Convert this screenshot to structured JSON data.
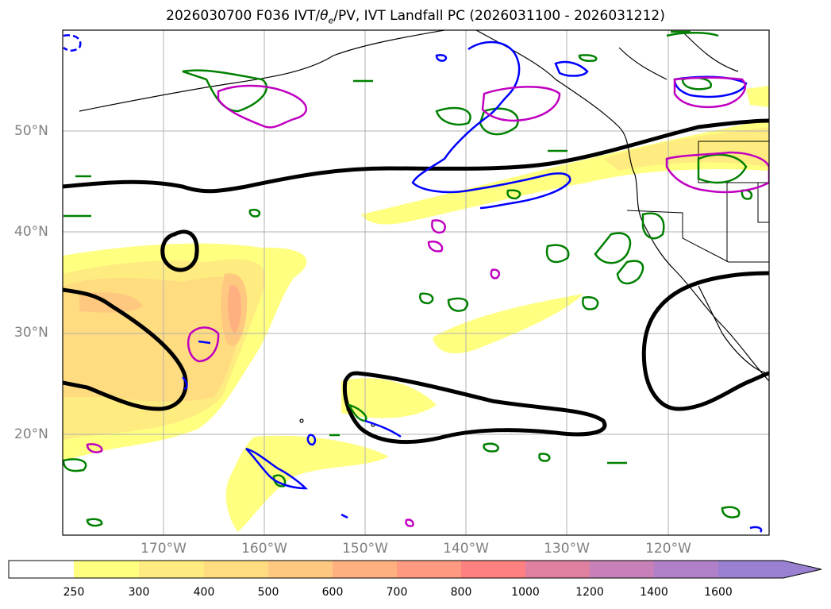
{
  "title": {
    "date_forecast": "2026030700 F036 IVT/",
    "theta": "θ",
    "theta_sub": "e",
    "rest": "/PV, IVT Landfall PC (2026031100 - 2026031212)"
  },
  "map": {
    "lat_labels": [
      "50°N",
      "40°N",
      "30°N",
      "20°N"
    ],
    "lon_labels": [
      "170°W",
      "160°W",
      "150°W",
      "140°W",
      "130°W",
      "120°W"
    ],
    "extent": {
      "lon": [
        -180,
        -110
      ],
      "lat": [
        10,
        60
      ]
    }
  },
  "colorbar": {
    "levels": [
      "250",
      "300",
      "400",
      "500",
      "600",
      "700",
      "800",
      "1000",
      "1200",
      "1400",
      "1600"
    ],
    "colors": [
      "#ffffff",
      "#ffff80",
      "#ffec80",
      "#ffdc80",
      "#ffc880",
      "#ffb080",
      "#ff9a80",
      "#ff8080",
      "#e080a0",
      "#c880b8",
      "#b080c8",
      "#9980d0"
    ],
    "extend": "max"
  },
  "legend_colors": {
    "ivt_fill": "#ffff80",
    "pc_contour": "#000000",
    "pv_contour": "#008000",
    "theta_contour": "#0000ff",
    "landfall_contour": "#c000c0"
  }
}
